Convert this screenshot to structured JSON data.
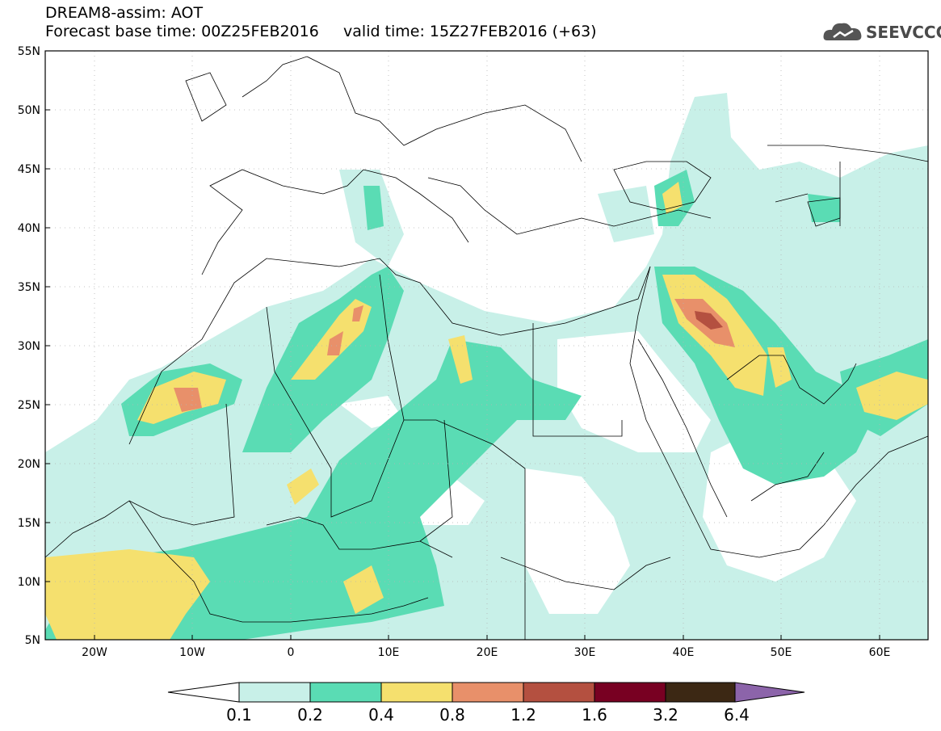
{
  "header": {
    "line1": "DREAM8-assim: AOT",
    "line2": "Forecast base time: 00Z25FEB2016     valid time: 15Z27FEB2016 (+63)"
  },
  "logo": {
    "text": "SEEVCCC",
    "icon": "cloud-icon"
  },
  "map": {
    "lat_labels": [
      "55N",
      "50N",
      "45N",
      "40N",
      "35N",
      "30N",
      "25N",
      "20N",
      "15N",
      "10N",
      "5N"
    ],
    "lon_labels": [
      "20W",
      "10W",
      "0",
      "10E",
      "20E",
      "30E",
      "40E",
      "50E",
      "60E"
    ],
    "lat_range": [
      5,
      55
    ],
    "lon_range": [
      -25,
      65
    ],
    "grid": "dotted"
  },
  "colorbar": {
    "levels": [
      "0.1",
      "0.2",
      "0.4",
      "0.8",
      "1.2",
      "1.6",
      "3.2",
      "6.4"
    ],
    "colors": [
      "#ffffff",
      "#c8f0e8",
      "#5adcb4",
      "#f5e06e",
      "#e8906a",
      "#b45040",
      "#780022",
      "#3c2814",
      "#8c64aa"
    ]
  }
}
